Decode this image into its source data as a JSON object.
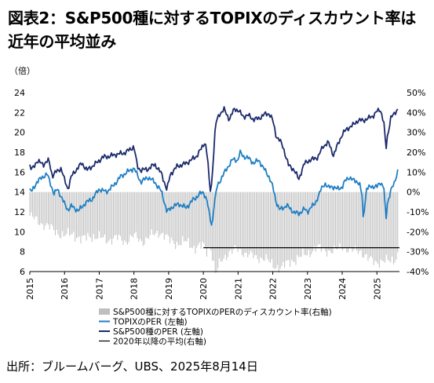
{
  "title_line1": "図表2：S&P500種に対するTOPIXのディスカウント率は",
  "title_line2": "近年の平均並み",
  "source": "出所：ブルームバーグ、UBS、2025年8月14日",
  "chart_data": {
    "type": "line",
    "left_axis_unit": "（倍）",
    "ylim_left": [
      6,
      24
    ],
    "ylim_right": [
      -40,
      50
    ],
    "yticks_left": [
      6,
      8,
      10,
      12,
      14,
      16,
      18,
      20,
      22,
      24
    ],
    "yticks_right": [
      "-40%",
      "-30%",
      "-20%",
      "-10%",
      "0%",
      "10%",
      "20%",
      "30%",
      "40%",
      "50%"
    ],
    "x_ticks": [
      "2015",
      "2016",
      "2017",
      "2018",
      "2019",
      "2020",
      "2021",
      "2022",
      "2023",
      "2024",
      "2025"
    ],
    "x_range": [
      2015.0,
      2025.65
    ],
    "series": [
      {
        "name": "S&P500種に対するTOPIXのPERのディスカウント率(右軸)",
        "axis": "right",
        "color": "#bfbfbf",
        "x": [
          2015.0,
          2015.25,
          2015.5,
          2015.75,
          2016.0,
          2016.25,
          2016.5,
          2016.75,
          2017.0,
          2017.25,
          2017.5,
          2017.75,
          2018.0,
          2018.25,
          2018.5,
          2018.75,
          2019.0,
          2019.25,
          2019.5,
          2019.75,
          2020.0,
          2020.1,
          2020.2,
          2020.25,
          2020.35,
          2020.5,
          2020.75,
          2021.0,
          2021.25,
          2021.5,
          2021.75,
          2022.0,
          2022.25,
          2022.5,
          2022.75,
          2023.0,
          2023.25,
          2023.5,
          2023.75,
          2024.0,
          2024.25,
          2024.5,
          2024.75,
          2025.0,
          2025.25,
          2025.5,
          2025.6
        ],
        "values": [
          -12,
          -15,
          -17,
          -20,
          -22,
          -21,
          -24,
          -22,
          -23,
          -24,
          -23,
          -25,
          -22,
          -25,
          -22,
          -20,
          -24,
          -26,
          -25,
          -28,
          -27,
          -30,
          -26,
          -31,
          -42,
          -35,
          -30,
          -29,
          -31,
          -33,
          -33,
          -37,
          -38,
          -35,
          -33,
          -31,
          -28,
          -29,
          -30,
          -27,
          -30,
          -29,
          -34,
          -35,
          -35,
          -34,
          -32
        ]
      },
      {
        "name": "TOPIXのPER (左軸)",
        "axis": "left",
        "color": "#1f7fc4",
        "x": [
          2015.0,
          2015.05,
          2015.2,
          2015.4,
          2015.5,
          2015.6,
          2015.7,
          2015.8,
          2016.0,
          2016.1,
          2016.2,
          2016.4,
          2016.6,
          2016.8,
          2017.0,
          2017.2,
          2017.4,
          2017.6,
          2017.8,
          2018.0,
          2018.2,
          2018.4,
          2018.6,
          2018.8,
          2018.95,
          2019.1,
          2019.3,
          2019.5,
          2019.7,
          2019.9,
          2020.0,
          2020.1,
          2020.17,
          2020.25,
          2020.3,
          2020.4,
          2020.55,
          2020.7,
          2020.85,
          2021.0,
          2021.05,
          2021.15,
          2021.3,
          2021.45,
          2021.6,
          2021.75,
          2021.9,
          2022.0,
          2022.1,
          2022.2,
          2022.3,
          2022.4,
          2022.5,
          2022.6,
          2022.75,
          2022.9,
          2023.0,
          2023.1,
          2023.2,
          2023.3,
          2023.4,
          2023.5,
          2023.6,
          2023.7,
          2023.85,
          2024.0,
          2024.1,
          2024.2,
          2024.3,
          2024.42,
          2024.5,
          2024.58,
          2024.6,
          2024.7,
          2024.85,
          2025.0,
          2025.1,
          2025.2,
          2025.26,
          2025.3,
          2025.4,
          2025.5,
          2025.6
        ],
        "values": [
          14.2,
          14.0,
          15.0,
          15.6,
          15.8,
          14.8,
          13.8,
          14.3,
          12.8,
          12.2,
          12.6,
          12.1,
          12.9,
          13.3,
          14.3,
          14.0,
          14.6,
          15.5,
          16.0,
          16.4,
          15.0,
          15.5,
          15.0,
          14.0,
          12.0,
          12.5,
          12.8,
          12.4,
          13.2,
          13.8,
          14.0,
          13.2,
          11.8,
          10.5,
          12.5,
          14.6,
          15.6,
          16.5,
          17.3,
          17.2,
          18.0,
          17.6,
          17.4,
          16.9,
          17.2,
          16.3,
          15.5,
          14.5,
          13.0,
          12.2,
          12.4,
          12.7,
          12.3,
          12.0,
          11.8,
          12.3,
          12.0,
          12.5,
          12.7,
          13.5,
          14.3,
          14.9,
          14.4,
          14.6,
          14.3,
          14.5,
          15.2,
          15.5,
          15.2,
          15.1,
          14.8,
          13.5,
          11.2,
          14.3,
          14.6,
          14.5,
          15.0,
          14.5,
          11.0,
          12.8,
          14.2,
          14.8,
          16.2
        ]
      },
      {
        "name": "S&P500種のPER (左軸)",
        "axis": "left",
        "color": "#1b2a6b",
        "x": [
          2015.0,
          2015.05,
          2015.2,
          2015.4,
          2015.55,
          2015.65,
          2015.75,
          2015.9,
          2016.0,
          2016.1,
          2016.2,
          2016.35,
          2016.5,
          2016.65,
          2016.8,
          2016.95,
          2017.1,
          2017.3,
          2017.5,
          2017.7,
          2017.9,
          2018.0,
          2018.1,
          2018.2,
          2018.4,
          2018.6,
          2018.8,
          2018.95,
          2019.05,
          2019.25,
          2019.45,
          2019.6,
          2019.8,
          2019.95,
          2020.05,
          2020.12,
          2020.18,
          2020.22,
          2020.28,
          2020.35,
          2020.45,
          2020.6,
          2020.75,
          2020.9,
          2021.0,
          2021.15,
          2021.3,
          2021.45,
          2021.6,
          2021.75,
          2021.9,
          2022.0,
          2022.1,
          2022.2,
          2022.3,
          2022.45,
          2022.6,
          2022.75,
          2022.9,
          2023.0,
          2023.15,
          2023.3,
          2023.45,
          2023.6,
          2023.75,
          2023.9,
          2024.0,
          2024.15,
          2024.3,
          2024.45,
          2024.6,
          2024.75,
          2024.9,
          2025.0,
          2025.1,
          2025.2,
          2025.26,
          2025.3,
          2025.4,
          2025.5,
          2025.6
        ],
        "values": [
          16.6,
          16.2,
          17.1,
          16.8,
          17.2,
          15.6,
          16.0,
          16.4,
          15.2,
          14.3,
          15.6,
          16.3,
          16.9,
          16.2,
          16.6,
          17.0,
          17.5,
          17.6,
          17.8,
          17.9,
          18.3,
          18.6,
          16.5,
          16.2,
          16.3,
          16.8,
          15.8,
          14.2,
          15.8,
          16.6,
          16.8,
          17.1,
          17.6,
          18.4,
          19.1,
          17.5,
          14.5,
          14.0,
          17.0,
          20.8,
          21.8,
          22.3,
          21.3,
          22.4,
          22.2,
          21.6,
          21.7,
          21.3,
          21.4,
          21.8,
          21.9,
          21.2,
          19.6,
          19.2,
          18.5,
          16.7,
          16.3,
          15.3,
          16.8,
          17.1,
          17.3,
          17.5,
          18.6,
          19.0,
          17.7,
          19.0,
          19.8,
          20.4,
          20.7,
          21.2,
          21.2,
          21.4,
          21.7,
          22.1,
          22.3,
          21.0,
          18.2,
          19.5,
          21.5,
          21.8,
          22.4
        ]
      },
      {
        "name": "2020年以降の平均(右軸)",
        "axis": "right",
        "color": "#000000",
        "x": [
          2020.0,
          2025.65
        ],
        "values": [
          -28,
          -28
        ]
      }
    ],
    "grid": false,
    "legend_position": "bottom"
  }
}
